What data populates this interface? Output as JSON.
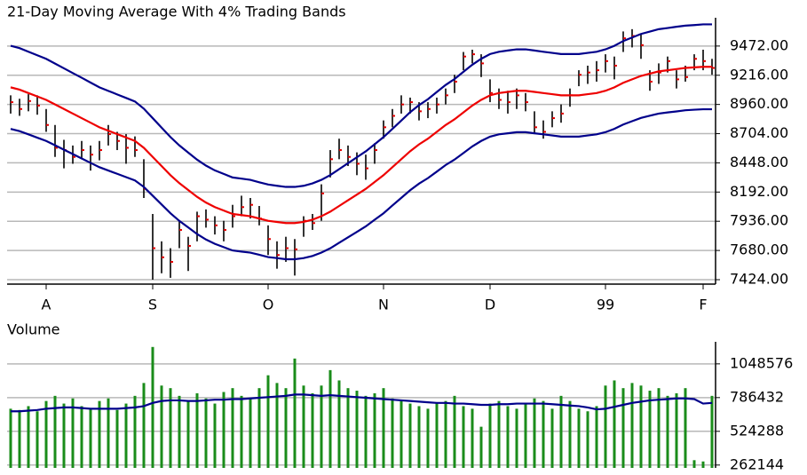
{
  "chart_data": [
    {
      "type": "ohlc",
      "title": "21-Day Moving Average With 4% Trading Bands",
      "categories": [
        null,
        null,
        null,
        null,
        "A",
        null,
        null,
        null,
        null,
        null,
        null,
        null,
        null,
        null,
        null,
        null,
        "S",
        null,
        null,
        null,
        null,
        null,
        null,
        null,
        null,
        null,
        null,
        null,
        null,
        "O",
        null,
        null,
        null,
        null,
        null,
        null,
        null,
        null,
        null,
        null,
        null,
        null,
        "N",
        null,
        null,
        null,
        null,
        null,
        null,
        null,
        null,
        null,
        null,
        null,
        "D",
        null,
        null,
        null,
        null,
        null,
        null,
        null,
        null,
        null,
        null,
        null,
        null,
        "99",
        null,
        null,
        null,
        null,
        null,
        null,
        null,
        null,
        null,
        null,
        "F",
        null
      ],
      "close": [
        8980,
        8920,
        8990,
        8950,
        8780,
        8580,
        8560,
        8500,
        8560,
        8520,
        8560,
        8700,
        8640,
        8580,
        8560,
        8220,
        7700,
        7620,
        7580,
        7860,
        7720,
        7980,
        7950,
        7900,
        7860,
        7980,
        8060,
        8080,
        7960,
        7780,
        7640,
        7700,
        7690,
        7940,
        7920,
        8180,
        8480,
        8560,
        8500,
        8440,
        8400,
        8560,
        8760,
        8860,
        8960,
        8980,
        8900,
        8920,
        8960,
        9040,
        9160,
        9380,
        9400,
        9320,
        9060,
        9000,
        8980,
        9040,
        8980,
        8760,
        8720,
        8840,
        8880,
        9040,
        9220,
        9240,
        9260,
        9340,
        9300,
        9540,
        9560,
        9480,
        9160,
        9240,
        9340,
        9180,
        9200,
        9360,
        9340,
        9280
      ],
      "high": [
        9040,
        9010,
        9050,
        9040,
        8920,
        8780,
        8650,
        8600,
        8640,
        8600,
        8640,
        8780,
        8720,
        8700,
        8680,
        8480,
        8000,
        7760,
        7700,
        7940,
        7800,
        8020,
        8040,
        7980,
        7940,
        8080,
        8160,
        8140,
        8070,
        7900,
        7760,
        7800,
        7780,
        7980,
        8000,
        8260,
        8560,
        8660,
        8600,
        8540,
        8520,
        8620,
        8820,
        8920,
        9040,
        9020,
        8980,
        8980,
        9020,
        9100,
        9220,
        9420,
        9440,
        9400,
        9180,
        9100,
        9080,
        9100,
        9060,
        8900,
        8820,
        8900,
        8960,
        9100,
        9260,
        9300,
        9340,
        9400,
        9380,
        9600,
        9620,
        9580,
        9260,
        9320,
        9380,
        9260,
        9300,
        9400,
        9440,
        9360
      ],
      "low": [
        8880,
        8860,
        8900,
        8870,
        8720,
        8500,
        8400,
        8440,
        8480,
        8380,
        8470,
        8600,
        8560,
        8440,
        8500,
        8140,
        7424,
        7480,
        7440,
        7700,
        7500,
        7760,
        7880,
        7820,
        7760,
        7880,
        7980,
        7960,
        7900,
        7640,
        7520,
        7580,
        7460,
        7800,
        7860,
        7940,
        8320,
        8480,
        8420,
        8340,
        8300,
        8440,
        8660,
        8760,
        8880,
        8880,
        8820,
        8840,
        8880,
        8960,
        9060,
        9260,
        9320,
        9200,
        8980,
        8920,
        8880,
        8920,
        8900,
        8700,
        8660,
        8760,
        8800,
        8940,
        9120,
        9140,
        9160,
        9240,
        9180,
        9420,
        9460,
        9360,
        9080,
        9140,
        9240,
        9100,
        9160,
        9260,
        9260,
        9220
      ],
      "bar_color": "#000000",
      "close_color": "#e00000",
      "series": [
        {
          "color": "#00008b",
          "values": [
            9474,
            9454,
            9422,
            9391,
            9360,
            9318,
            9277,
            9235,
            9194,
            9152,
            9110,
            9079,
            9048,
            9017,
            8986,
            8923,
            8840,
            8757,
            8674,
            8601,
            8538,
            8476,
            8424,
            8382,
            8351,
            8320,
            8310,
            8299,
            8278,
            8258,
            8247,
            8237,
            8237,
            8247,
            8268,
            8299,
            8341,
            8393,
            8445,
            8497,
            8549,
            8611,
            8674,
            8746,
            8819,
            8892,
            8954,
            9006,
            9069,
            9131,
            9183,
            9246,
            9308,
            9360,
            9402,
            9422,
            9433,
            9443,
            9443,
            9433,
            9422,
            9412,
            9402,
            9402,
            9402,
            9412,
            9422,
            9443,
            9474,
            9516,
            9547,
            9578,
            9599,
            9620,
            9630,
            9641,
            9651,
            9656,
            9662,
            9662
          ]
        },
        {
          "color": "#ee0000",
          "values": [
            9110,
            9090,
            9060,
            9030,
            9000,
            8960,
            8920,
            8880,
            8840,
            8800,
            8760,
            8730,
            8700,
            8670,
            8640,
            8580,
            8500,
            8420,
            8340,
            8270,
            8210,
            8150,
            8100,
            8060,
            8030,
            8000,
            7990,
            7980,
            7960,
            7940,
            7930,
            7920,
            7920,
            7930,
            7950,
            7980,
            8020,
            8070,
            8120,
            8170,
            8220,
            8280,
            8340,
            8410,
            8480,
            8550,
            8610,
            8660,
            8720,
            8780,
            8830,
            8890,
            8950,
            9000,
            9040,
            9060,
            9070,
            9080,
            9080,
            9070,
            9060,
            9050,
            9040,
            9040,
            9040,
            9050,
            9060,
            9080,
            9110,
            9150,
            9180,
            9210,
            9230,
            9250,
            9260,
            9270,
            9280,
            9285,
            9290,
            9290
          ]
        },
        {
          "color": "#00008b",
          "values": [
            8746,
            8726,
            8698,
            8669,
            8640,
            8602,
            8563,
            8525,
            8486,
            8448,
            8410,
            8381,
            8352,
            8323,
            8294,
            8237,
            8160,
            8083,
            8006,
            7939,
            7882,
            7824,
            7776,
            7738,
            7709,
            7680,
            7670,
            7661,
            7642,
            7622,
            7613,
            7603,
            7603,
            7613,
            7632,
            7661,
            7699,
            7747,
            7795,
            7843,
            7891,
            7949,
            8006,
            8074,
            8141,
            8208,
            8266,
            8314,
            8371,
            8429,
            8477,
            8534,
            8592,
            8640,
            8678,
            8698,
            8707,
            8717,
            8717,
            8707,
            8698,
            8688,
            8678,
            8678,
            8678,
            8688,
            8698,
            8717,
            8746,
            8784,
            8813,
            8842,
            8861,
            8880,
            8890,
            8899,
            8909,
            8914,
            8918,
            8918
          ]
        }
      ],
      "ylim": [
        7385,
        9720
      ],
      "yticks": [
        {
          "value": 7424,
          "label": "7424.00"
        },
        {
          "value": 7680,
          "label": "7680.00"
        },
        {
          "value": 7936,
          "label": "7936.00"
        },
        {
          "value": 8192,
          "label": "8192.00"
        },
        {
          "value": 8448,
          "label": "8448.00"
        },
        {
          "value": 8704,
          "label": "8704.00"
        },
        {
          "value": 8960,
          "label": "8960.00"
        },
        {
          "value": 9216,
          "label": "9216.00"
        },
        {
          "value": 9472,
          "label": "9472.00"
        }
      ],
      "grid": true
    },
    {
      "type": "bar",
      "title": "Volume",
      "color": "#1a8c1a",
      "values": [
        700000,
        690000,
        720000,
        680000,
        760000,
        800000,
        740000,
        780000,
        720000,
        700000,
        760000,
        780000,
        690000,
        740000,
        800000,
        900000,
        1180000,
        880000,
        860000,
        800000,
        760000,
        820000,
        780000,
        740000,
        830000,
        860000,
        800000,
        780000,
        860000,
        960000,
        900000,
        860000,
        1090000,
        880000,
        820000,
        880000,
        1000000,
        920000,
        860000,
        840000,
        800000,
        820000,
        860000,
        780000,
        760000,
        740000,
        720000,
        700000,
        740000,
        760000,
        800000,
        720000,
        700000,
        560000,
        740000,
        760000,
        720000,
        700000,
        740000,
        780000,
        760000,
        700000,
        800000,
        760000,
        700000,
        680000,
        720000,
        880000,
        920000,
        860000,
        900000,
        880000,
        840000,
        860000,
        800000,
        820000,
        860000,
        300000,
        290000,
        800000
      ],
      "series": [
        {
          "color": "#00008b",
          "values": [
            680000,
            680000,
            685000,
            690000,
            700000,
            705000,
            710000,
            710000,
            705000,
            700000,
            700000,
            700000,
            700000,
            705000,
            710000,
            720000,
            745000,
            760000,
            765000,
            765000,
            760000,
            760000,
            765000,
            770000,
            770000,
            775000,
            775000,
            780000,
            785000,
            790000,
            795000,
            800000,
            810000,
            810000,
            805000,
            800000,
            805000,
            800000,
            795000,
            790000,
            785000,
            780000,
            775000,
            770000,
            765000,
            760000,
            755000,
            750000,
            745000,
            745000,
            740000,
            740000,
            735000,
            730000,
            730000,
            735000,
            735000,
            740000,
            740000,
            740000,
            740000,
            735000,
            730000,
            725000,
            720000,
            710000,
            695000,
            700000,
            715000,
            730000,
            745000,
            755000,
            765000,
            770000,
            775000,
            780000,
            780000,
            775000,
            740000,
            745000
          ]
        }
      ],
      "ylim": [
        240000,
        1220000
      ],
      "yticks": [
        262144,
        524288,
        786432,
        1048576
      ],
      "grid": true
    }
  ]
}
